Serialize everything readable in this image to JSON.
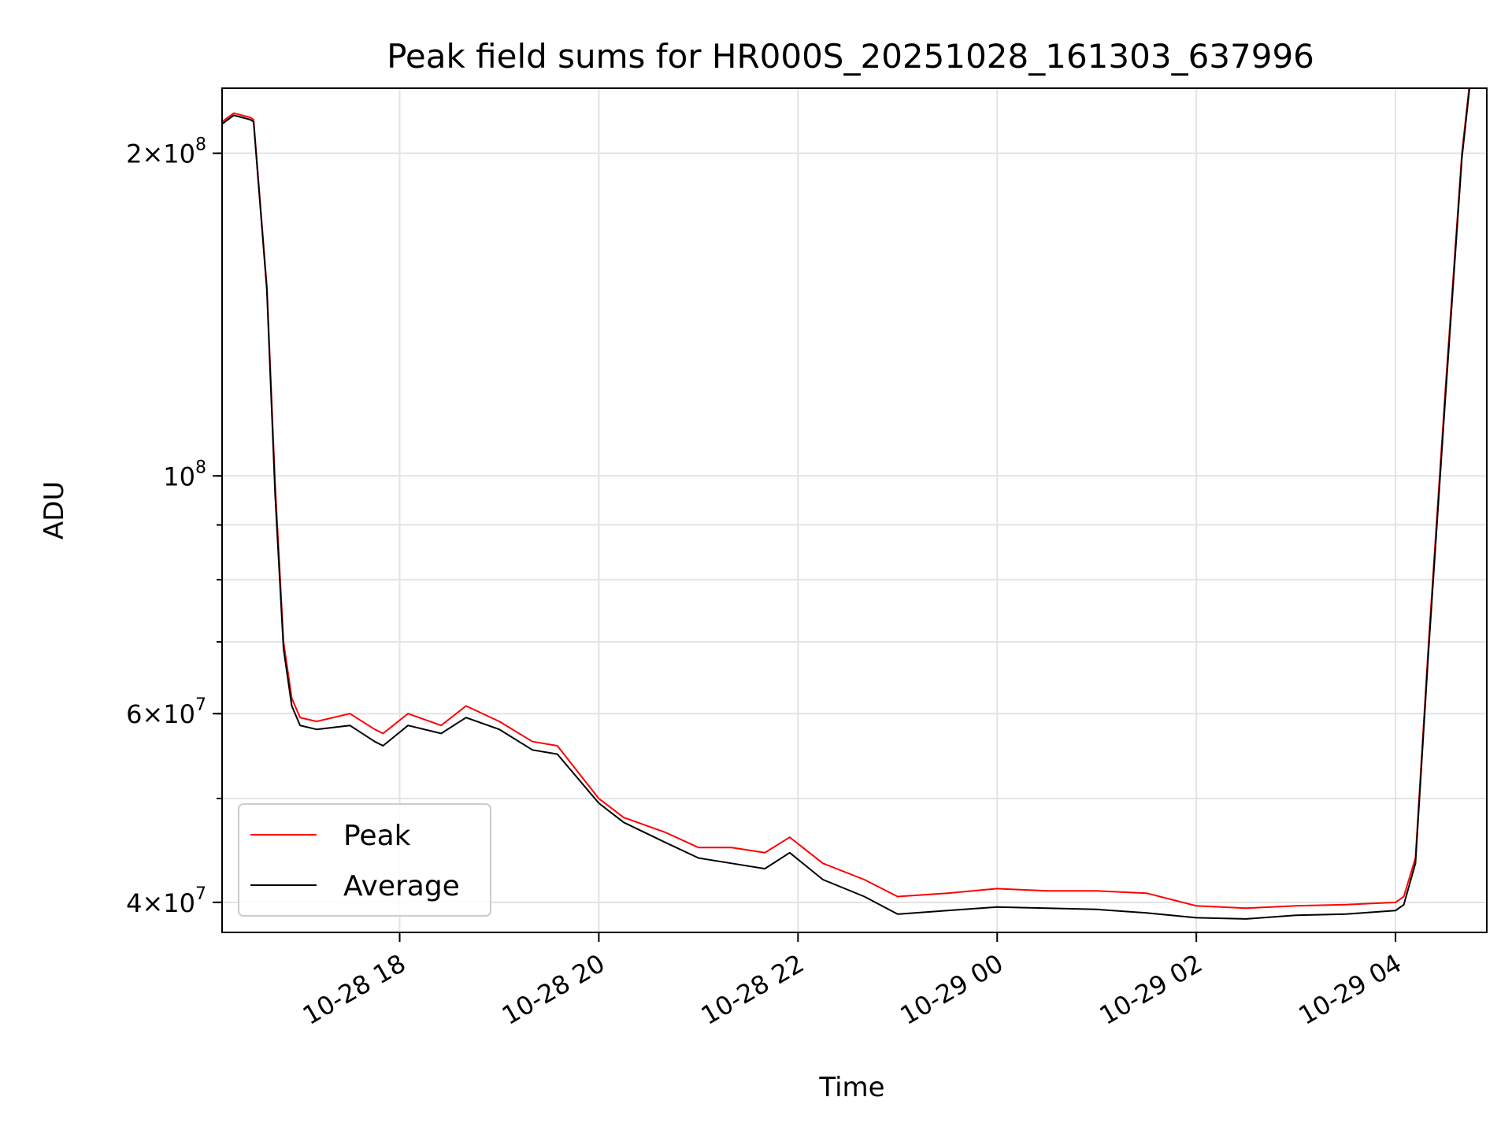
{
  "chart_data": {
    "type": "line",
    "title": "Peak field sums for HR000S_20251028_161303_637996",
    "xlabel": "Time",
    "ylabel": "ADU",
    "y_scale": "log",
    "ylim": [
      37500000,
      230000000
    ],
    "xlim": [
      "2025-10-28 16:13",
      "2025-10-29 04:55"
    ],
    "grid": true,
    "legend_position": "lower-left",
    "x_tick_labels": [
      "10-28 18",
      "10-28 20",
      "10-28 22",
      "10-29 00",
      "10-29 02",
      "10-29 04"
    ],
    "x_ticks": [
      "2025-10-28 18:00",
      "2025-10-28 20:00",
      "2025-10-28 22:00",
      "2025-10-29 00:00",
      "2025-10-29 02:00",
      "2025-10-29 04:00"
    ],
    "y_tick_labels": [
      {
        "value": 40000000,
        "mantissa": "4",
        "exponent": "7"
      },
      {
        "value": 60000000,
        "mantissa": "6",
        "exponent": "7"
      },
      {
        "value": 100000000,
        "mantissa": "",
        "exponent": "8"
      },
      {
        "value": 200000000,
        "mantissa": "2",
        "exponent": "8"
      }
    ],
    "series": [
      {
        "name": "Peak",
        "color": "#ff0000",
        "x": [
          "2025-10-28 16:13",
          "2025-10-28 16:20",
          "2025-10-28 16:30",
          "2025-10-28 16:32",
          "2025-10-28 16:40",
          "2025-10-28 16:45",
          "2025-10-28 16:50",
          "2025-10-28 16:55",
          "2025-10-28 17:00",
          "2025-10-28 17:10",
          "2025-10-28 17:30",
          "2025-10-28 17:45",
          "2025-10-28 17:50",
          "2025-10-28 18:05",
          "2025-10-28 18:25",
          "2025-10-28 18:40",
          "2025-10-28 19:00",
          "2025-10-28 19:20",
          "2025-10-28 19:35",
          "2025-10-28 20:00",
          "2025-10-28 20:15",
          "2025-10-28 20:40",
          "2025-10-28 21:00",
          "2025-10-28 21:20",
          "2025-10-28 21:40",
          "2025-10-28 21:55",
          "2025-10-28 22:15",
          "2025-10-28 22:40",
          "2025-10-28 23:00",
          "2025-10-28 23:30",
          "2025-10-29 00:00",
          "2025-10-29 00:30",
          "2025-10-29 01:00",
          "2025-10-29 01:30",
          "2025-10-29 02:00",
          "2025-10-29 02:30",
          "2025-10-29 03:00",
          "2025-10-29 03:30",
          "2025-10-29 04:00",
          "2025-10-29 04:05",
          "2025-10-29 04:12",
          "2025-10-29 04:20",
          "2025-10-29 04:30",
          "2025-10-29 04:40",
          "2025-10-29 04:45"
        ],
        "values": [
          214000000,
          218000000,
          216000000,
          215000000,
          150000000,
          98000000,
          70000000,
          62000000,
          59500000,
          59000000,
          60000000,
          58000000,
          57500000,
          60000000,
          58500000,
          61000000,
          59000000,
          56500000,
          56000000,
          50000000,
          48000000,
          46500000,
          45000000,
          45000000,
          44500000,
          46000000,
          43500000,
          42000000,
          40500000,
          40800000,
          41200000,
          41000000,
          41000000,
          40800000,
          39700000,
          39500000,
          39700000,
          39800000,
          40000000,
          40500000,
          44000000,
          70000000,
          120000000,
          200000000,
          235000000
        ]
      },
      {
        "name": "Average",
        "color": "#000000",
        "x": [
          "2025-10-28 16:13",
          "2025-10-28 16:20",
          "2025-10-28 16:30",
          "2025-10-28 16:32",
          "2025-10-28 16:40",
          "2025-10-28 16:45",
          "2025-10-28 16:50",
          "2025-10-28 16:55",
          "2025-10-28 17:00",
          "2025-10-28 17:10",
          "2025-10-28 17:30",
          "2025-10-28 17:45",
          "2025-10-28 17:50",
          "2025-10-28 18:05",
          "2025-10-28 18:25",
          "2025-10-28 18:40",
          "2025-10-28 19:00",
          "2025-10-28 19:20",
          "2025-10-28 19:35",
          "2025-10-28 20:00",
          "2025-10-28 20:15",
          "2025-10-28 20:40",
          "2025-10-28 21:00",
          "2025-10-28 21:20",
          "2025-10-28 21:40",
          "2025-10-28 21:55",
          "2025-10-28 22:15",
          "2025-10-28 22:40",
          "2025-10-28 23:00",
          "2025-10-28 23:30",
          "2025-10-29 00:00",
          "2025-10-29 00:30",
          "2025-10-29 01:00",
          "2025-10-29 01:30",
          "2025-10-29 02:00",
          "2025-10-29 02:30",
          "2025-10-29 03:00",
          "2025-10-29 03:30",
          "2025-10-29 04:00",
          "2025-10-29 04:05",
          "2025-10-29 04:12",
          "2025-10-29 04:20",
          "2025-10-29 04:30",
          "2025-10-29 04:40",
          "2025-10-29 04:45"
        ],
        "values": [
          213000000,
          217000000,
          215000000,
          214000000,
          149000000,
          96000000,
          69000000,
          61000000,
          58500000,
          58000000,
          58500000,
          56500000,
          56000000,
          58500000,
          57500000,
          59500000,
          58000000,
          55500000,
          55000000,
          49500000,
          47500000,
          45500000,
          44000000,
          43500000,
          43000000,
          44500000,
          42000000,
          40500000,
          39000000,
          39300000,
          39600000,
          39500000,
          39400000,
          39100000,
          38700000,
          38600000,
          38900000,
          39000000,
          39300000,
          39800000,
          43500000,
          69000000,
          118000000,
          198000000,
          233000000
        ]
      }
    ]
  }
}
